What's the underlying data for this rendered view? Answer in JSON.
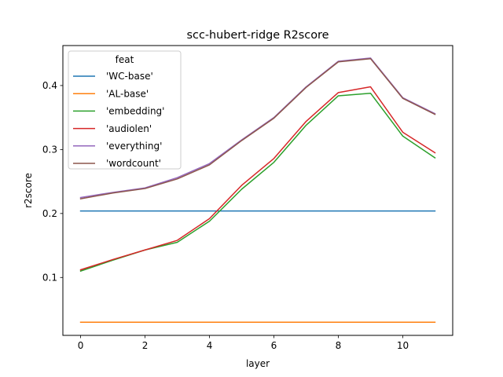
{
  "chart_data": {
    "type": "line",
    "title": "scc-hubert-ridge R2score",
    "xlabel": "layer",
    "ylabel": "r2score",
    "xlim": [
      -0.55,
      11.55
    ],
    "ylim": [
      0.0095,
      0.4625
    ],
    "xticks": [
      0,
      2,
      4,
      6,
      8,
      10
    ],
    "yticks": [
      0.1,
      0.2,
      0.3,
      0.4
    ],
    "xtick_labels": [
      "0",
      "2",
      "4",
      "6",
      "8",
      "10"
    ],
    "ytick_labels": [
      "0.1",
      "0.2",
      "0.3",
      "0.4"
    ],
    "grid": false,
    "legend": {
      "title": "feat",
      "placement": "top-left"
    },
    "x": [
      0,
      1,
      2,
      3,
      4,
      5,
      6,
      7,
      8,
      9,
      10,
      11
    ],
    "series": [
      {
        "name": "'WC-base'",
        "color": "#1f77b4",
        "values": [
          0.204,
          0.204,
          0.204,
          0.204,
          0.204,
          0.204,
          0.204,
          0.204,
          0.204,
          0.204,
          0.204,
          0.204
        ]
      },
      {
        "name": "'AL-base'",
        "color": "#ff7f0e",
        "values": [
          0.03,
          0.03,
          0.03,
          0.03,
          0.03,
          0.03,
          0.03,
          0.03,
          0.03,
          0.03,
          0.03,
          0.03
        ]
      },
      {
        "name": "'embedding'",
        "color": "#2ca02c",
        "values": [
          0.11,
          0.127,
          0.143,
          0.155,
          0.188,
          0.238,
          0.28,
          0.338,
          0.384,
          0.388,
          0.321,
          0.287
        ]
      },
      {
        "name": "'audiolen'",
        "color": "#d62728",
        "values": [
          0.112,
          0.128,
          0.143,
          0.158,
          0.192,
          0.244,
          0.286,
          0.344,
          0.389,
          0.398,
          0.327,
          0.295
        ]
      },
      {
        "name": "'everything'",
        "color": "#9467bd",
        "values": [
          0.225,
          0.233,
          0.24,
          0.256,
          0.278,
          0.315,
          0.35,
          0.398,
          0.438,
          0.443,
          0.381,
          0.356
        ]
      },
      {
        "name": "'wordcount'",
        "color": "#8c564b",
        "values": [
          0.223,
          0.232,
          0.239,
          0.254,
          0.276,
          0.314,
          0.349,
          0.397,
          0.437,
          0.442,
          0.38,
          0.355
        ]
      }
    ]
  }
}
